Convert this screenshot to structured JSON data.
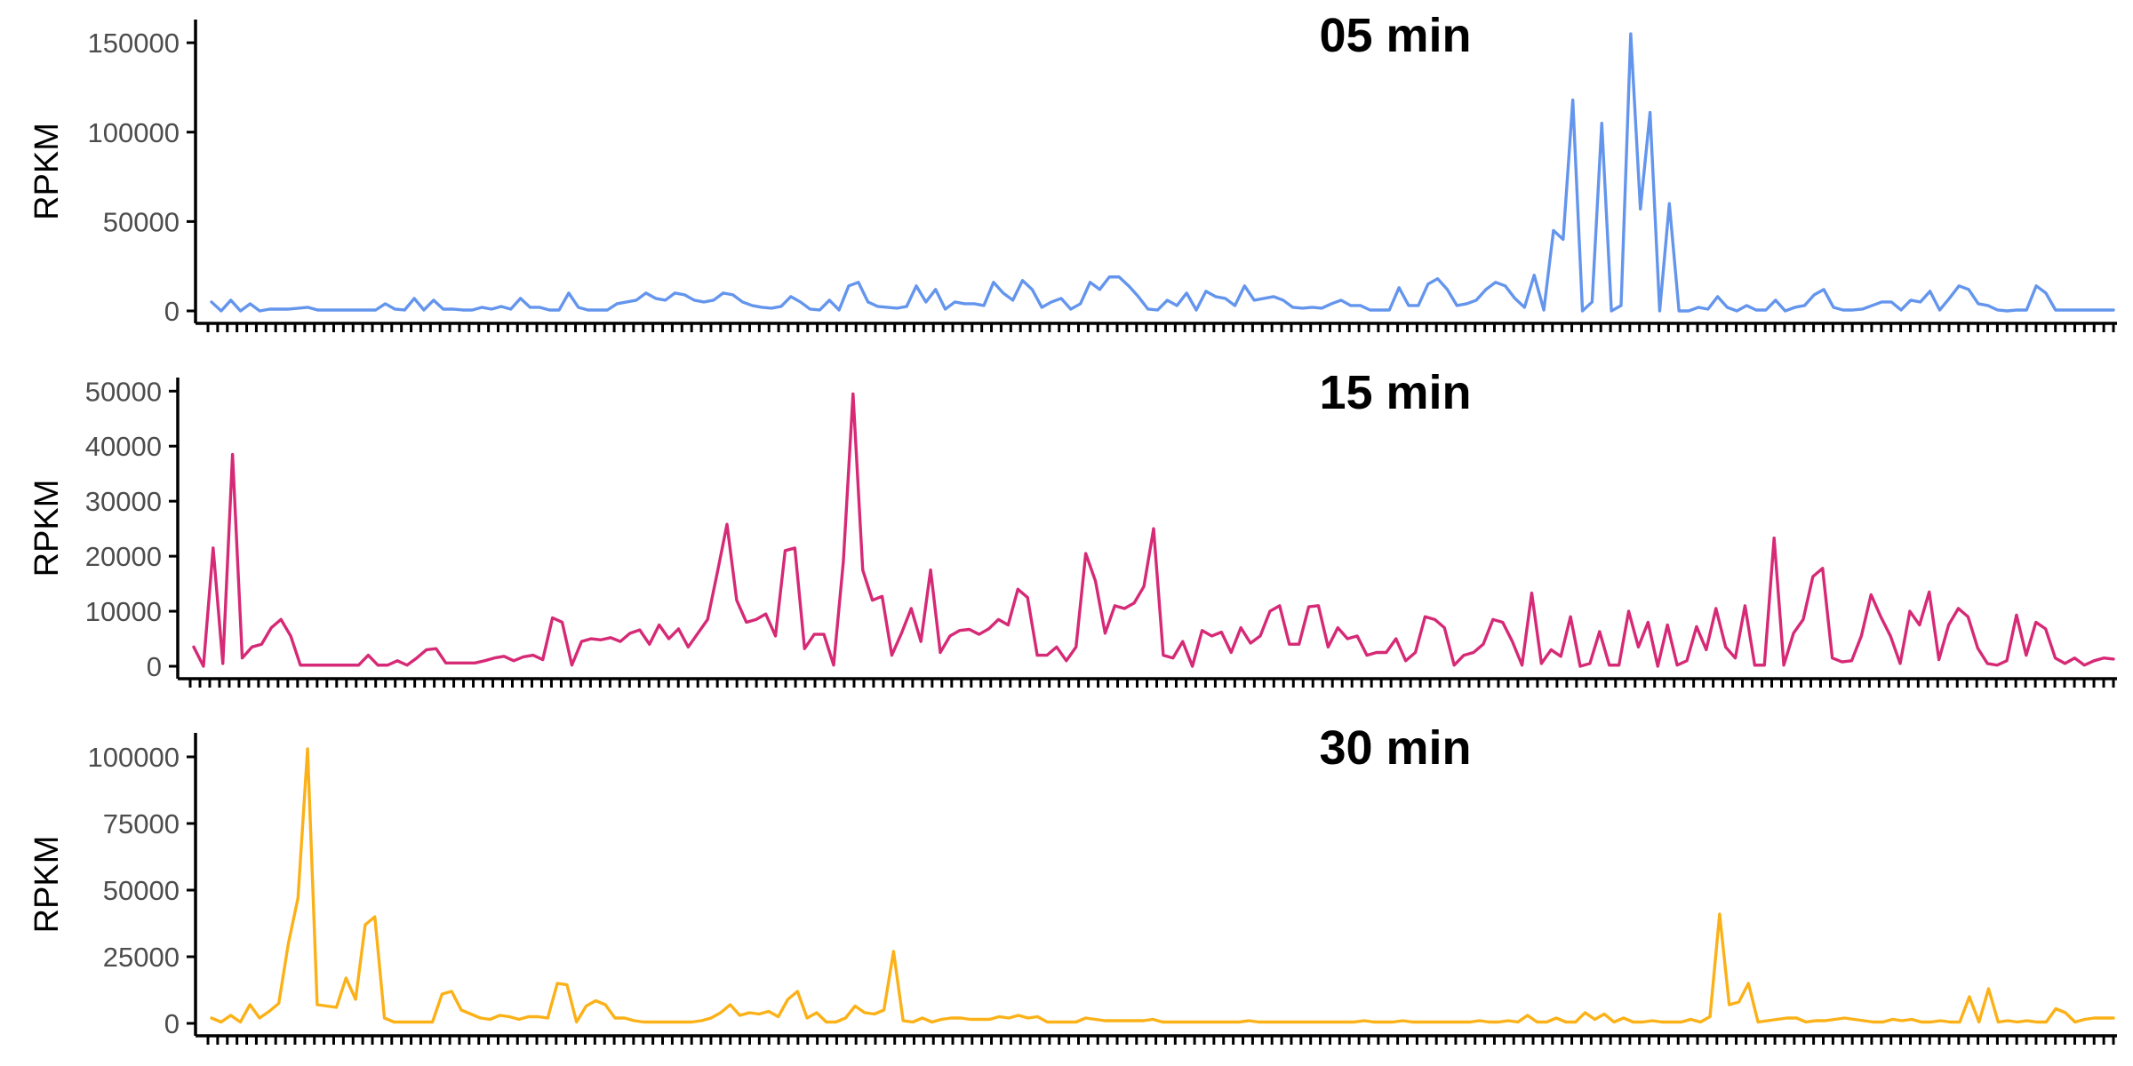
{
  "chart_data": [
    {
      "type": "line",
      "title": "05 min",
      "ylabel": "RPKM",
      "color": "#6495ED",
      "ylim": [
        0,
        160000
      ],
      "yticks": [
        0,
        50000,
        100000,
        150000
      ],
      "ytick_labels": [
        "0",
        "50000",
        "100000",
        "150000"
      ],
      "values": [
        5000,
        0,
        6000,
        0,
        4000,
        0,
        1000,
        1000,
        1000,
        1500,
        2000,
        500,
        500,
        500,
        500,
        500,
        500,
        500,
        4000,
        1000,
        500,
        7000,
        500,
        6000,
        1000,
        1000,
        500,
        500,
        2000,
        1000,
        2500,
        1000,
        7000,
        2000,
        2000,
        500,
        500,
        10000,
        2000,
        500,
        500,
        500,
        4000,
        5000,
        6000,
        10000,
        7000,
        6000,
        10000,
        9000,
        6000,
        5000,
        6000,
        10000,
        9000,
        5000,
        3000,
        2000,
        1500,
        2500,
        8000,
        5000,
        1000,
        500,
        6000,
        500,
        14000,
        16000,
        5000,
        2500,
        2000,
        1500,
        2500,
        14000,
        5000,
        12000,
        1000,
        5000,
        4000,
        4000,
        3000,
        16000,
        10000,
        6000,
        17000,
        12000,
        2000,
        5000,
        7000,
        1000,
        4000,
        16000,
        12000,
        19000,
        19000,
        14000,
        8000,
        1000,
        500,
        6000,
        3000,
        10000,
        500,
        11000,
        8000,
        7000,
        3000,
        14000,
        6000,
        7000,
        8000,
        6000,
        2000,
        1500,
        2000,
        1500,
        4000,
        6000,
        3000,
        3000,
        500,
        500,
        500,
        13000,
        3000,
        3000,
        15000,
        18000,
        12000,
        3000,
        4000,
        6000,
        12000,
        16000,
        14000,
        7000,
        2000,
        20000,
        500,
        45000,
        40000,
        118000,
        0,
        5000,
        105000,
        0,
        3000,
        155000,
        57000,
        111000,
        0,
        60000,
        0,
        0,
        2000,
        1000,
        8000,
        2000,
        0,
        3000,
        500,
        500,
        6000,
        0,
        2000,
        3000,
        9000,
        12000,
        2000,
        500,
        500,
        1000,
        3000,
        5000,
        5000,
        500,
        6000,
        5000,
        11000,
        500,
        7000,
        14000,
        12000,
        4000,
        3000,
        500,
        0,
        500,
        500,
        14000,
        10000,
        500,
        500,
        500,
        500,
        500,
        500,
        500
      ],
      "xtick_count": 198
    },
    {
      "type": "line",
      "title": "15 min",
      "ylabel": "RPKM",
      "color": "#D62976",
      "ylim": [
        0,
        51500
      ],
      "yticks": [
        0,
        10000,
        20000,
        30000,
        40000,
        50000
      ],
      "ytick_labels": [
        "0",
        "10000",
        "20000",
        "30000",
        "40000",
        "50000"
      ],
      "values": [
        3500,
        0,
        21500,
        500,
        38500,
        1500,
        3500,
        4000,
        7000,
        8500,
        5500,
        200,
        200,
        200,
        200,
        200,
        200,
        200,
        2000,
        200,
        200,
        1000,
        200,
        1500,
        3000,
        3200,
        600,
        600,
        600,
        600,
        1000,
        1500,
        1800,
        1000,
        1700,
        2000,
        1200,
        8800,
        8000,
        200,
        4500,
        5000,
        4800,
        5200,
        4500,
        6000,
        6600,
        4000,
        7500,
        5000,
        6800,
        3500,
        6000,
        8500,
        17000,
        25800,
        12000,
        8000,
        8500,
        9500,
        5500,
        21000,
        21500,
        3200,
        5800,
        5800,
        200,
        19000,
        49500,
        17500,
        12000,
        12700,
        2000,
        6000,
        10500,
        4500,
        17500,
        2500,
        5500,
        6500,
        6700,
        5800,
        6800,
        8500,
        7500,
        14000,
        12500,
        2000,
        2000,
        3500,
        1000,
        3500,
        20500,
        15500,
        6000,
        11000,
        10500,
        11500,
        14500,
        25000,
        2000,
        1500,
        4500,
        0,
        6500,
        5500,
        6200,
        2500,
        7000,
        4200,
        5500,
        10000,
        11000,
        4000,
        4000,
        10800,
        11000,
        3500,
        7000,
        5000,
        5500,
        2000,
        2500,
        2500,
        5000,
        1000,
        2500,
        9000,
        8500,
        7000,
        200,
        2000,
        2500,
        4000,
        8500,
        8000,
        4500,
        200,
        13300,
        500,
        3000,
        1800,
        9000,
        0,
        500,
        6300,
        200,
        200,
        10000,
        3500,
        8000,
        0,
        7500,
        200,
        1000,
        7200,
        3000,
        10500,
        3500,
        1500,
        11000,
        200,
        200,
        23300,
        200,
        6000,
        8500,
        16300,
        17800,
        1500,
        800,
        1000,
        5500,
        13000,
        9000,
        5500,
        500,
        10000,
        7500,
        13500,
        1200,
        7500,
        10500,
        9000,
        3300,
        500,
        200,
        1000,
        9300,
        2000,
        8000,
        6800,
        1500,
        500,
        1500,
        200,
        1000,
        1500,
        1300
      ],
      "xtick_count": 198
    },
    {
      "type": "line",
      "title": "30 min",
      "ylabel": "RPKM",
      "color": "#FBB117",
      "ylim": [
        0,
        107000
      ],
      "yticks": [
        0,
        25000,
        50000,
        75000,
        100000
      ],
      "ytick_labels": [
        "0",
        "25000",
        "50000",
        "75000",
        "100000"
      ],
      "values": [
        2000,
        500,
        3000,
        500,
        7000,
        2000,
        4500,
        7500,
        30000,
        47000,
        103000,
        7000,
        6500,
        6000,
        17000,
        9000,
        37000,
        40000,
        2000,
        500,
        500,
        500,
        500,
        500,
        11000,
        12000,
        5000,
        3500,
        2000,
        1500,
        3000,
        2500,
        1500,
        2500,
        2500,
        2000,
        15000,
        14500,
        500,
        6500,
        8500,
        7000,
        2000,
        2000,
        1000,
        500,
        500,
        500,
        500,
        500,
        500,
        1000,
        2000,
        4000,
        7000,
        3000,
        4000,
        3500,
        4500,
        2500,
        9000,
        12000,
        2000,
        4000,
        500,
        500,
        2000,
        6500,
        4000,
        3500,
        5000,
        27000,
        1000,
        500,
        2000,
        500,
        1500,
        2000,
        2000,
        1500,
        1500,
        1500,
        2500,
        2000,
        3000,
        2000,
        2500,
        500,
        500,
        500,
        500,
        2000,
        1500,
        1000,
        1000,
        1000,
        1000,
        1000,
        1500,
        500,
        500,
        500,
        500,
        500,
        500,
        500,
        500,
        500,
        1000,
        500,
        500,
        500,
        500,
        500,
        500,
        500,
        500,
        500,
        500,
        500,
        1000,
        500,
        500,
        500,
        1000,
        500,
        500,
        500,
        500,
        500,
        500,
        500,
        1000,
        500,
        500,
        1000,
        500,
        3000,
        500,
        500,
        2000,
        500,
        500,
        4000,
        1500,
        3500,
        500,
        2000,
        500,
        500,
        1000,
        500,
        500,
        500,
        1500,
        500,
        2500,
        41000,
        7000,
        8000,
        15000,
        500,
        1000,
        1500,
        2000,
        2000,
        500,
        1000,
        1000,
        1500,
        2000,
        1500,
        1000,
        500,
        500,
        1500,
        1000,
        1500,
        500,
        500,
        1000,
        500,
        500,
        10000,
        500,
        13000,
        500,
        1000,
        500,
        1000,
        500,
        500,
        5500,
        4000,
        500,
        1500,
        2000,
        2000,
        2000
      ],
      "xtick_count": 198
    }
  ]
}
